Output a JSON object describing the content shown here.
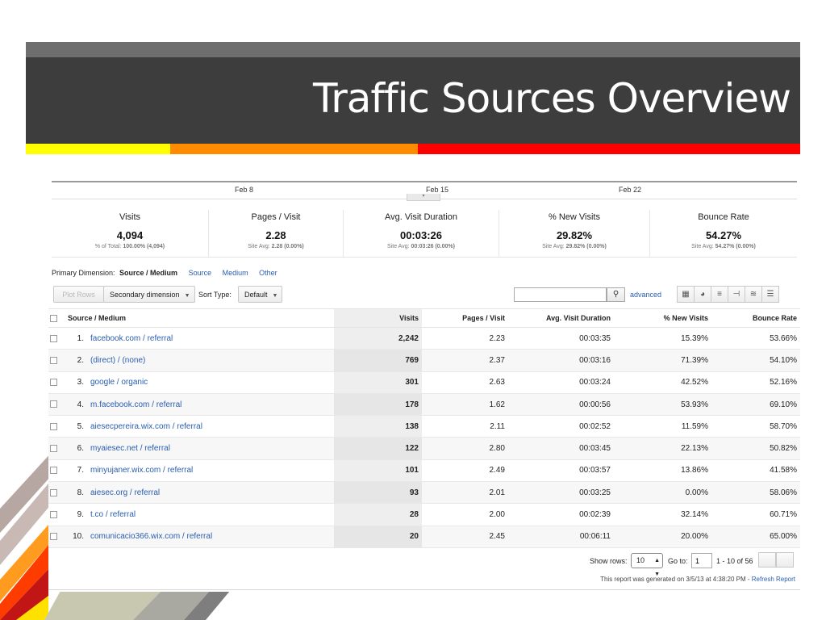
{
  "slide": {
    "title": "Traffic Sources Overview",
    "accent_colors": [
      "#ffff00",
      "#ff8c00",
      "#ff0000"
    ]
  },
  "timeline": {
    "dates": [
      "Feb 8",
      "Feb 15",
      "Feb 22"
    ],
    "toggle": "▾"
  },
  "summary": [
    {
      "label": "Visits",
      "value": "4,094",
      "sub_prefix": "% of Total: ",
      "sub_value": "100.00% (4,094)"
    },
    {
      "label": "Pages / Visit",
      "value": "2.28",
      "sub_prefix": "Site Avg: ",
      "sub_value": "2.28 (0.00%)"
    },
    {
      "label": "Avg. Visit Duration",
      "value": "00:03:26",
      "sub_prefix": "Site Avg: ",
      "sub_value": "00:03:26 (0.00%)"
    },
    {
      "label": "% New Visits",
      "value": "29.82%",
      "sub_prefix": "Site Avg: ",
      "sub_value": "29.82% (0.00%)"
    },
    {
      "label": "Bounce Rate",
      "value": "54.27%",
      "sub_prefix": "Site Avg: ",
      "sub_value": "54.27% (0.00%)"
    }
  ],
  "dimension": {
    "label": "Primary Dimension:",
    "current": "Source / Medium",
    "links": [
      "Source",
      "Medium",
      "Other"
    ]
  },
  "controls": {
    "plot_rows": "Plot Rows",
    "secondary_dimension": "Secondary dimension",
    "sort_type_label": "Sort Type:",
    "sort_type_value": "Default",
    "search_placeholder": "",
    "advanced": "advanced",
    "view_icons": [
      "grid-view-icon",
      "pie-view-icon",
      "performance-view-icon",
      "comparison-view-icon",
      "term-cloud-icon",
      "pivot-view-icon"
    ]
  },
  "table": {
    "headers": [
      "Source / Medium",
      "Visits",
      "Pages / Visit",
      "Avg. Visit Duration",
      "% New Visits",
      "Bounce Rate"
    ],
    "rows": [
      {
        "num": "1.",
        "source": "facebook.com / referral",
        "visits": "2,242",
        "pages": "2.23",
        "duration": "00:03:35",
        "new": "15.39%",
        "bounce": "53.66%"
      },
      {
        "num": "2.",
        "source": "(direct) / (none)",
        "visits": "769",
        "pages": "2.37",
        "duration": "00:03:16",
        "new": "71.39%",
        "bounce": "54.10%"
      },
      {
        "num": "3.",
        "source": "google / organic",
        "visits": "301",
        "pages": "2.63",
        "duration": "00:03:24",
        "new": "42.52%",
        "bounce": "52.16%"
      },
      {
        "num": "4.",
        "source": "m.facebook.com / referral",
        "visits": "178",
        "pages": "1.62",
        "duration": "00:00:56",
        "new": "53.93%",
        "bounce": "69.10%"
      },
      {
        "num": "5.",
        "source": "aiesecpereira.wix.com / referral",
        "visits": "138",
        "pages": "2.11",
        "duration": "00:02:52",
        "new": "11.59%",
        "bounce": "58.70%"
      },
      {
        "num": "6.",
        "source": "myaiesec.net / referral",
        "visits": "122",
        "pages": "2.80",
        "duration": "00:03:45",
        "new": "22.13%",
        "bounce": "50.82%"
      },
      {
        "num": "7.",
        "source": "minyujaner.wix.com / referral",
        "visits": "101",
        "pages": "2.49",
        "duration": "00:03:57",
        "new": "13.86%",
        "bounce": "41.58%"
      },
      {
        "num": "8.",
        "source": "aiesec.org / referral",
        "visits": "93",
        "pages": "2.01",
        "duration": "00:03:25",
        "new": "0.00%",
        "bounce": "58.06%"
      },
      {
        "num": "9.",
        "source": "t.co / referral",
        "visits": "28",
        "pages": "2.00",
        "duration": "00:02:39",
        "new": "32.14%",
        "bounce": "60.71%"
      },
      {
        "num": "10.",
        "source": "comunicacio366.wix.com / referral",
        "visits": "20",
        "pages": "2.45",
        "duration": "00:06:11",
        "new": "20.00%",
        "bounce": "65.00%"
      }
    ]
  },
  "footer": {
    "show_rows_label": "Show rows:",
    "show_rows_value": "10",
    "goto_label": "Go to:",
    "goto_value": "1",
    "page_range": "1 - 10 of 56",
    "generated_text": "This report was generated on 3/5/13 at 4:38:20 PM - ",
    "refresh_link": "Refresh Report"
  }
}
